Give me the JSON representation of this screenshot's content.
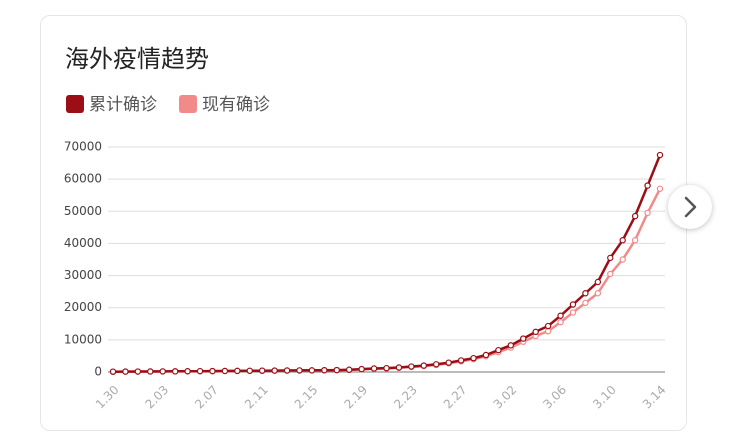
{
  "chart_data": {
    "type": "line",
    "title": "海外疫情趋势",
    "legend": "top-left",
    "grid": true,
    "categories": [
      "1.30",
      null,
      null,
      null,
      "2.03",
      null,
      null,
      null,
      "2.07",
      null,
      null,
      null,
      "2.11",
      null,
      null,
      null,
      "2.15",
      null,
      null,
      null,
      "2.19",
      null,
      null,
      null,
      "2.23",
      null,
      null,
      null,
      "2.27",
      null,
      null,
      null,
      "3.02",
      null,
      null,
      null,
      "3.06",
      null,
      null,
      null,
      "3.10",
      null,
      null,
      null,
      "3.14"
    ],
    "series": [
      {
        "name": "累计确诊",
        "color": "#9b0e16",
        "values": [
          100,
          130,
          150,
          170,
          190,
          210,
          230,
          260,
          290,
          320,
          350,
          380,
          410,
          440,
          470,
          500,
          520,
          560,
          600,
          700,
          900,
          1100,
          1200,
          1400,
          1700,
          2000,
          2400,
          2900,
          3600,
          4300,
          5300,
          6800,
          8300,
          10400,
          12500,
          14300,
          17500,
          21000,
          24500,
          28000,
          35500,
          41000,
          48500,
          58000,
          67500
        ]
      },
      {
        "name": "现有确诊",
        "color": "#f28a8a",
        "values": [
          90,
          120,
          140,
          160,
          180,
          200,
          220,
          240,
          270,
          300,
          330,
          360,
          390,
          410,
          440,
          460,
          480,
          510,
          550,
          640,
          820,
          1000,
          1100,
          1300,
          1550,
          1850,
          2200,
          2700,
          3300,
          4000,
          4900,
          6200,
          7600,
          9400,
          11200,
          12700,
          15500,
          18500,
          21500,
          24500,
          30500,
          35000,
          41000,
          49500,
          57000
        ]
      }
    ],
    "ylim": [
      0,
      70000
    ],
    "yticks": [
      0,
      10000,
      20000,
      30000,
      40000,
      50000,
      60000,
      70000
    ]
  }
}
